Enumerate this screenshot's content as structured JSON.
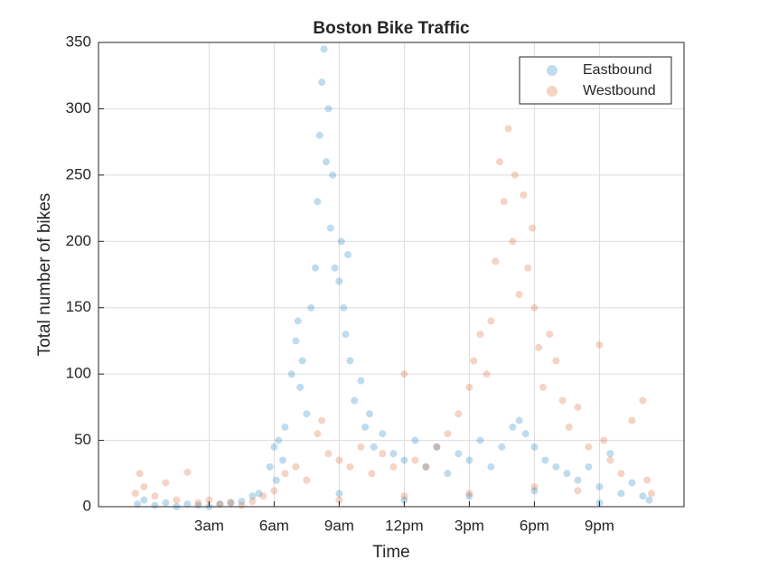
{
  "chart_data": {
    "type": "scatter",
    "title": "Boston Bike Traffic",
    "x_label": "Time",
    "y_label": "Total number of bikes",
    "xlim": [
      -2.1,
      24.9
    ],
    "ylim": [
      0,
      350
    ],
    "xticks": [
      {
        "value": 3,
        "label": "3am"
      },
      {
        "value": 6,
        "label": "6am"
      },
      {
        "value": 9,
        "label": "9am"
      },
      {
        "value": 12,
        "label": "12pm"
      },
      {
        "value": 15,
        "label": "3pm"
      },
      {
        "value": 18,
        "label": "6pm"
      },
      {
        "value": 21,
        "label": "9pm"
      }
    ],
    "yticks": [
      0,
      50,
      100,
      150,
      200,
      250,
      300,
      350
    ],
    "grid": true,
    "legend": "northeast",
    "series": [
      {
        "name": "Eastbound",
        "color": "#0072bd",
        "x": [
          -0.3,
          0,
          0.5,
          1,
          1.5,
          2,
          2.5,
          3,
          3.5,
          4,
          4.5,
          5,
          5.3,
          5.8,
          6,
          6.1,
          6.2,
          6.4,
          6.5,
          6.8,
          7,
          7.1,
          7.2,
          7.3,
          7.5,
          7.7,
          7.9,
          8,
          8.1,
          8.2,
          8.3,
          8.4,
          8.5,
          8.6,
          8.7,
          8.8,
          9,
          9.1,
          9.2,
          9.3,
          9.4,
          9.5,
          9.7,
          10,
          10.2,
          10.4,
          10.6,
          11,
          11.5,
          12,
          12.5,
          13,
          13.5,
          14,
          14.5,
          15,
          15.5,
          16,
          16.5,
          17,
          17.3,
          17.6,
          18,
          18.5,
          19,
          19.5,
          20,
          20.5,
          21,
          21.5,
          22,
          22.5,
          23,
          23.3,
          9,
          12,
          15,
          18,
          21
        ],
        "values": [
          2,
          5,
          1,
          3,
          0,
          2,
          1,
          0,
          2,
          3,
          4,
          8,
          10,
          30,
          45,
          20,
          50,
          35,
          60,
          100,
          125,
          140,
          90,
          110,
          70,
          150,
          180,
          230,
          280,
          320,
          345,
          260,
          300,
          210,
          250,
          180,
          170,
          200,
          150,
          130,
          190,
          110,
          80,
          95,
          60,
          70,
          45,
          55,
          40,
          35,
          50,
          30,
          45,
          25,
          40,
          35,
          50,
          30,
          45,
          60,
          65,
          55,
          45,
          35,
          30,
          25,
          20,
          30,
          15,
          40,
          10,
          18,
          8,
          5,
          10,
          5,
          8,
          12,
          3
        ]
      },
      {
        "name": "Westbound",
        "color": "#d95319",
        "x": [
          -0.4,
          -0.2,
          0,
          0.5,
          1,
          1.5,
          2,
          2.5,
          3,
          3.5,
          4,
          4.5,
          5,
          5.5,
          6,
          6.5,
          7,
          7.5,
          8,
          8.2,
          8.5,
          9,
          9.5,
          10,
          10.5,
          11,
          11.5,
          12,
          12.5,
          13,
          13.5,
          14,
          14.5,
          15,
          15.2,
          15.5,
          15.8,
          16,
          16.2,
          16.4,
          16.6,
          16.8,
          17,
          17.1,
          17.3,
          17.5,
          17.7,
          17.9,
          18,
          18.2,
          18.4,
          18.7,
          19,
          19.3,
          19.6,
          20,
          20.5,
          21,
          21.2,
          21.5,
          22,
          22.5,
          23,
          23.2,
          23.4,
          9,
          12,
          15,
          18,
          20
        ],
        "values": [
          10,
          25,
          15,
          8,
          18,
          5,
          26,
          3,
          5,
          2,
          3,
          1,
          4,
          8,
          12,
          25,
          30,
          20,
          55,
          65,
          40,
          35,
          30,
          45,
          25,
          40,
          30,
          100,
          35,
          30,
          45,
          55,
          70,
          90,
          110,
          130,
          100,
          140,
          185,
          260,
          230,
          285,
          200,
          250,
          160,
          235,
          180,
          210,
          150,
          120,
          90,
          130,
          110,
          80,
          60,
          75,
          45,
          122,
          50,
          35,
          25,
          65,
          80,
          20,
          10,
          5,
          8,
          10,
          15,
          12
        ]
      }
    ]
  }
}
